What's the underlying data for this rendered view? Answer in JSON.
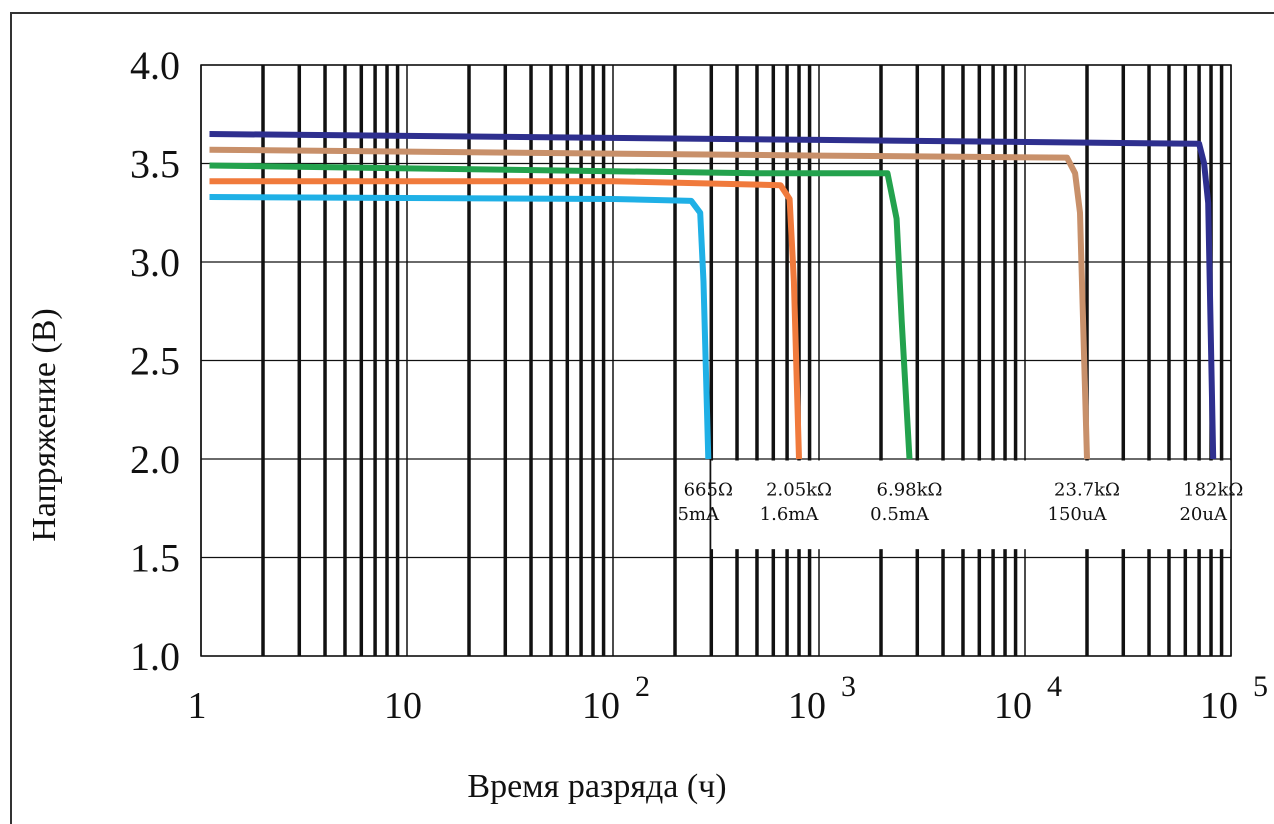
{
  "chart_data": {
    "type": "line",
    "x_scale": "log",
    "xlim": [
      1,
      100000
    ],
    "ylim": [
      1.0,
      4.0
    ],
    "xlabel": "Время разряда (ч)",
    "ylabel": "Напряжение (В)",
    "x_ticks": [
      {
        "value": 1,
        "base": "1",
        "exp": ""
      },
      {
        "value": 10,
        "base": "10",
        "exp": ""
      },
      {
        "value": 100,
        "base": "10",
        "exp": "2"
      },
      {
        "value": 1000,
        "base": "10",
        "exp": "3"
      },
      {
        "value": 10000,
        "base": "10",
        "exp": "4"
      },
      {
        "value": 100000,
        "base": "10",
        "exp": "5"
      }
    ],
    "y_ticks": [
      "1.0",
      "1.5",
      "2.0",
      "2.5",
      "3.0",
      "3.5",
      "4.0"
    ],
    "grid": true,
    "series": [
      {
        "resistance": "665Ω",
        "current": "5mA",
        "color": "#1fb0e6",
        "points": [
          [
            1.1,
            3.33
          ],
          [
            100,
            3.32
          ],
          [
            240,
            3.31
          ],
          [
            265,
            3.25
          ],
          [
            275,
            2.9
          ],
          [
            290,
            2.0
          ]
        ]
      },
      {
        "resistance": "2.05kΩ",
        "current": "1.6mA",
        "color": "#f07a3c",
        "points": [
          [
            1.1,
            3.41
          ],
          [
            100,
            3.41
          ],
          [
            650,
            3.39
          ],
          [
            720,
            3.32
          ],
          [
            755,
            2.9
          ],
          [
            800,
            2.0
          ]
        ]
      },
      {
        "resistance": "6.98kΩ",
        "current": "0.5mA",
        "color": "#23a24d",
        "points": [
          [
            1.1,
            3.49
          ],
          [
            500,
            3.45
          ],
          [
            2150,
            3.45
          ],
          [
            2380,
            3.22
          ],
          [
            2520,
            2.7
          ],
          [
            2750,
            2.0
          ]
        ]
      },
      {
        "resistance": "23.7kΩ",
        "current": "150uA",
        "color": "#c8906a",
        "points": [
          [
            1.1,
            3.57
          ],
          [
            1000,
            3.54
          ],
          [
            16000,
            3.53
          ],
          [
            17500,
            3.45
          ],
          [
            18500,
            3.25
          ],
          [
            20000,
            2.0
          ]
        ]
      },
      {
        "resistance": "182kΩ",
        "current": "20uA",
        "color": "#2e2f8e",
        "points": [
          [
            1.1,
            3.65
          ],
          [
            1000,
            3.62
          ],
          [
            70000,
            3.6
          ],
          [
            74000,
            3.5
          ],
          [
            77500,
            3.3
          ],
          [
            82000,
            2.0
          ]
        ]
      }
    ]
  }
}
